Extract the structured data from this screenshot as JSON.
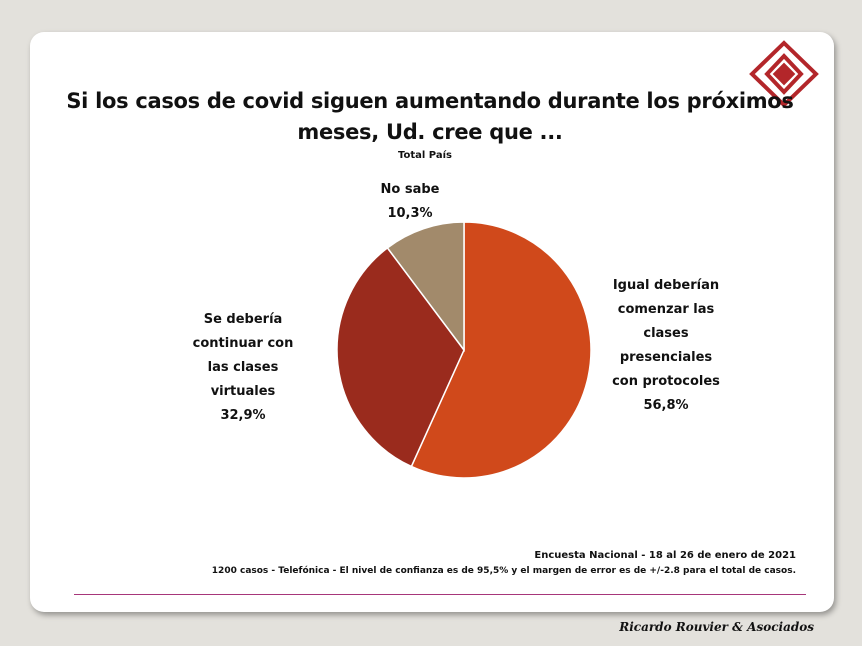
{
  "header": {
    "title_line1": "Si los casos de covid siguen aumentando durante los próximos",
    "title_line2": "meses, Ud. cree que ...",
    "subtitle": "Total País",
    "logo_icon": "diamond-logo-icon"
  },
  "chart_data": {
    "type": "pie",
    "title": "Si los casos de covid siguen aumentando durante los próximos meses, Ud. cree que ...",
    "subtitle": "Total País",
    "slices": [
      {
        "label_lines": [
          "Igual deberían",
          "comenzar las",
          "clases",
          "presenciales",
          "con protocoles"
        ],
        "value": 56.8,
        "value_label": "56,8%",
        "color": "#d0491b"
      },
      {
        "label_lines": [
          "Se debería",
          "continuar con",
          "las clases",
          "virtuales"
        ],
        "value": 32.9,
        "value_label": "32,9%",
        "color": "#9a2b1d"
      },
      {
        "label_lines": [
          "No sabe"
        ],
        "value": 10.3,
        "value_label": "10,3%",
        "color": "#a28a6b"
      }
    ],
    "legend": "none"
  },
  "footer": {
    "survey": "Encuesta Nacional - 18 al 26 de enero de 2021",
    "methodology": "1200 casos - Telefónica   - El nivel de confianza es de 95,5% y el margen de error es de +/-2.8 para el total de casos.",
    "brand": "Ricardo Rouvier & Asociados"
  }
}
